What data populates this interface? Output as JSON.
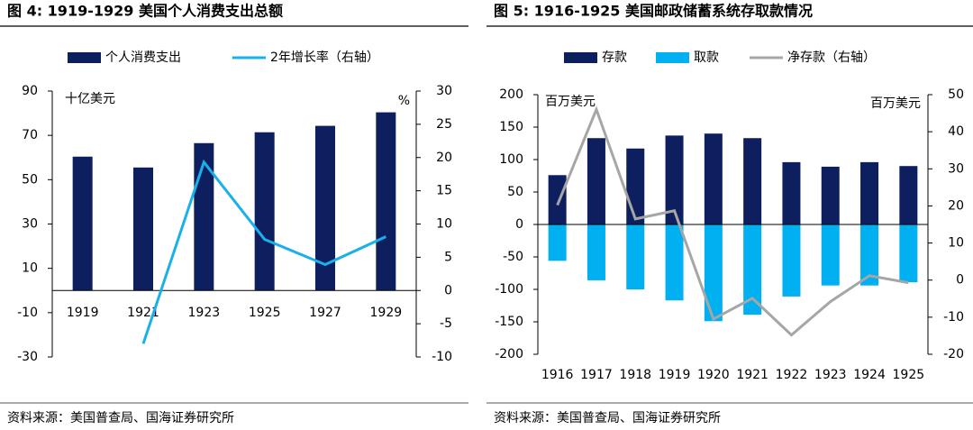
{
  "chart_data": [
    {
      "type": "bar",
      "title": "图 4:  1919-1929  美国个人消费支出总额",
      "categories": [
        "1919",
        "1921",
        "1923",
        "1925",
        "1927",
        "1929"
      ],
      "series": [
        {
          "name": "个人消费支出",
          "type": "bar",
          "color": "#0d1f5e",
          "values": [
            60.4,
            55.5,
            66.5,
            71.4,
            74.3,
            80.4
          ]
        },
        {
          "name": "2年增长率（右轴）",
          "type": "line",
          "axis": "y2",
          "color": "#1ab0ea",
          "values": [
            null,
            -8.0,
            19.3,
            7.7,
            3.9,
            8.1
          ]
        }
      ],
      "ylim": [
        -30,
        90
      ],
      "yticks": [
        90,
        70,
        50,
        30,
        10,
        -10,
        -30
      ],
      "y2lim": [
        -10,
        30
      ],
      "y2ticks": [
        30,
        25,
        20,
        15,
        10,
        5,
        0,
        -5,
        -10
      ],
      "y_unit": "十亿美元",
      "y2_unit": "%",
      "source": "资料来源：美国普查局、国海证券研究所"
    },
    {
      "type": "bar",
      "title": "图 5:  1916-1925  美国邮政储蓄系统存取款情况",
      "categories": [
        "1916",
        "1917",
        "1918",
        "1919",
        "1920",
        "1921",
        "1922",
        "1923",
        "1924",
        "1925"
      ],
      "series": [
        {
          "name": "存款",
          "type": "bar",
          "color": "#0d1f5e",
          "values": [
            76,
            133,
            117,
            137,
            140,
            133,
            96,
            89,
            96,
            90
          ]
        },
        {
          "name": "取款",
          "type": "bar",
          "color": "#00b0f0",
          "values": [
            -56,
            -86,
            -100,
            -117,
            -149,
            -139,
            -111,
            -94,
            -94,
            -89
          ]
        },
        {
          "name": "净存款（右轴）",
          "type": "line",
          "axis": "y2",
          "color": "#a6a6a6",
          "values": [
            20.2,
            46,
            16.5,
            18.7,
            -10.5,
            -4.9,
            -14.8,
            -5.8,
            1.2,
            -0.7
          ]
        }
      ],
      "ylim": [
        -200,
        200
      ],
      "yticks": [
        200,
        150,
        100,
        50,
        0,
        -50,
        -100,
        -150,
        -200
      ],
      "y2lim": [
        -20,
        50
      ],
      "y2ticks": [
        50,
        40,
        30,
        20,
        10,
        0,
        -10,
        -20
      ],
      "y_unit": "百万美元",
      "y2_unit": "百万美元",
      "source": "资料来源：美国普查局、国海证券研究所"
    }
  ]
}
